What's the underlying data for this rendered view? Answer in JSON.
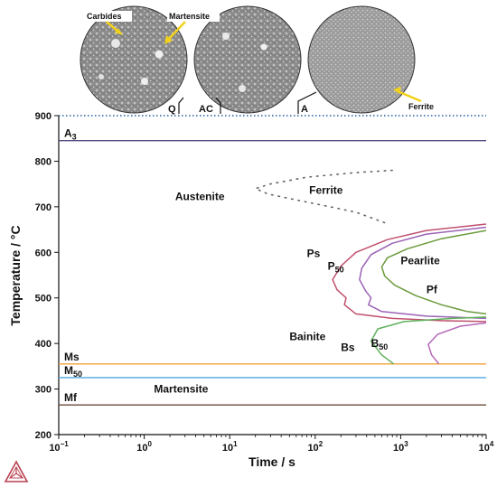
{
  "chart_data": {
    "type": "line",
    "xscale": "log",
    "xlim": [
      0.1,
      10000
    ],
    "ylim": [
      200,
      900
    ],
    "xlabel": "Time / s",
    "ylabel": "Temperature / °C",
    "xtick_labels": [
      {
        "x": 0.1,
        "base": "10",
        "exp": "−1"
      },
      {
        "x": 1,
        "base": "10",
        "exp": "0"
      },
      {
        "x": 10,
        "base": "10",
        "exp": "1"
      },
      {
        "x": 100,
        "base": "10",
        "exp": "2"
      },
      {
        "x": 1000,
        "base": "10",
        "exp": "3"
      },
      {
        "x": 10000,
        "base": "10",
        "exp": "4"
      }
    ],
    "ytick_labels": [
      "200",
      "300",
      "400",
      "500",
      "600",
      "700",
      "800",
      "900"
    ],
    "horizontal_lines": [
      {
        "label": "A3",
        "base": "A",
        "sub": "3",
        "y": 845,
        "color": "#5a4f86"
      },
      {
        "label": "Ms",
        "base": "Ms",
        "sub": "",
        "y": 355,
        "color": "#f2a23a"
      },
      {
        "label": "M50",
        "base": "M",
        "sub": "50",
        "y": 325,
        "color": "#4fa7e0"
      },
      {
        "label": "Mf",
        "base": "Mf",
        "sub": "",
        "y": 265,
        "color": "#6b4b3a"
      }
    ],
    "austenitization_line": {
      "y": 900,
      "color": "#1f5f9f",
      "style": "dotted"
    },
    "series": [
      {
        "name": "Ps",
        "color": "#c0506e",
        "points": [
          [
            10000,
            662
          ],
          [
            2000,
            648
          ],
          [
            700,
            628
          ],
          [
            300,
            600
          ],
          [
            200,
            570
          ],
          [
            160,
            540
          ],
          [
            180,
            518
          ],
          [
            230,
            500
          ],
          [
            220,
            485
          ],
          [
            300,
            465
          ],
          [
            800,
            455
          ],
          [
            3000,
            450
          ],
          [
            10000,
            448
          ]
        ]
      },
      {
        "name": "P50",
        "color": "#9a62b5",
        "points": [
          [
            10000,
            655
          ],
          [
            2000,
            640
          ],
          [
            800,
            620
          ],
          [
            450,
            595
          ],
          [
            350,
            565
          ],
          [
            330,
            540
          ],
          [
            390,
            515
          ],
          [
            450,
            500
          ],
          [
            420,
            485
          ],
          [
            600,
            470
          ],
          [
            2000,
            460
          ],
          [
            10000,
            455
          ]
        ]
      },
      {
        "name": "Pf",
        "color": "#6b9a3c",
        "points": [
          [
            10000,
            648
          ],
          [
            3000,
            630
          ],
          [
            1200,
            608
          ],
          [
            700,
            588
          ],
          [
            600,
            568
          ],
          [
            650,
            548
          ],
          [
            850,
            528
          ],
          [
            1500,
            505
          ],
          [
            3000,
            485
          ],
          [
            6000,
            470
          ],
          [
            10000,
            465
          ]
        ]
      },
      {
        "name": "Bs",
        "color": "#5db35a",
        "points": [
          [
            830,
            355
          ],
          [
            600,
            375
          ],
          [
            450,
            405
          ],
          [
            540,
            432
          ],
          [
            1100,
            448
          ],
          [
            4000,
            455
          ],
          [
            10000,
            458
          ]
        ]
      },
      {
        "name": "B50",
        "color": "#b468b8",
        "points": [
          [
            2800,
            355
          ],
          [
            2300,
            375
          ],
          [
            2100,
            398
          ],
          [
            2700,
            420
          ],
          [
            5000,
            438
          ],
          [
            10000,
            445
          ]
        ]
      },
      {
        "name": "Ferrite",
        "color": "#666666",
        "style": "dotted",
        "points": [
          [
            800,
            780
          ],
          [
            300,
            775
          ],
          [
            80,
            765
          ],
          [
            30,
            750
          ],
          [
            20,
            740
          ],
          [
            28,
            728
          ],
          [
            60,
            715
          ],
          [
            150,
            700
          ],
          [
            300,
            688
          ],
          [
            500,
            673
          ],
          [
            650,
            665
          ]
        ]
      }
    ],
    "region_labels": [
      {
        "base": "Austenite",
        "sub": "",
        "x": 2.3,
        "y": 715
      },
      {
        "base": "Ferrite",
        "sub": "",
        "x": 85,
        "y": 728
      },
      {
        "base": "Ps",
        "sub": "",
        "x": 80,
        "y": 590
      },
      {
        "base": "P",
        "sub": "50",
        "x": 140,
        "y": 562
      },
      {
        "base": "Pearlite",
        "sub": "",
        "x": 1000,
        "y": 574
      },
      {
        "base": "Pf",
        "sub": "",
        "x": 2000,
        "y": 510
      },
      {
        "base": "Bainite",
        "sub": "",
        "x": 50,
        "y": 407
      },
      {
        "base": "Bs",
        "sub": "",
        "x": 200,
        "y": 383
      },
      {
        "base": "B",
        "sub": "50",
        "x": 450,
        "y": 392
      },
      {
        "base": "Martensite",
        "sub": "",
        "x": 1.3,
        "y": 292
      }
    ]
  },
  "micrographs": [
    {
      "tag": "Q",
      "callouts": [
        "Carbides",
        "Martensite"
      ]
    },
    {
      "tag": "AC",
      "callouts": []
    },
    {
      "tag": "A",
      "callouts": [
        "Ferrite"
      ]
    }
  ]
}
